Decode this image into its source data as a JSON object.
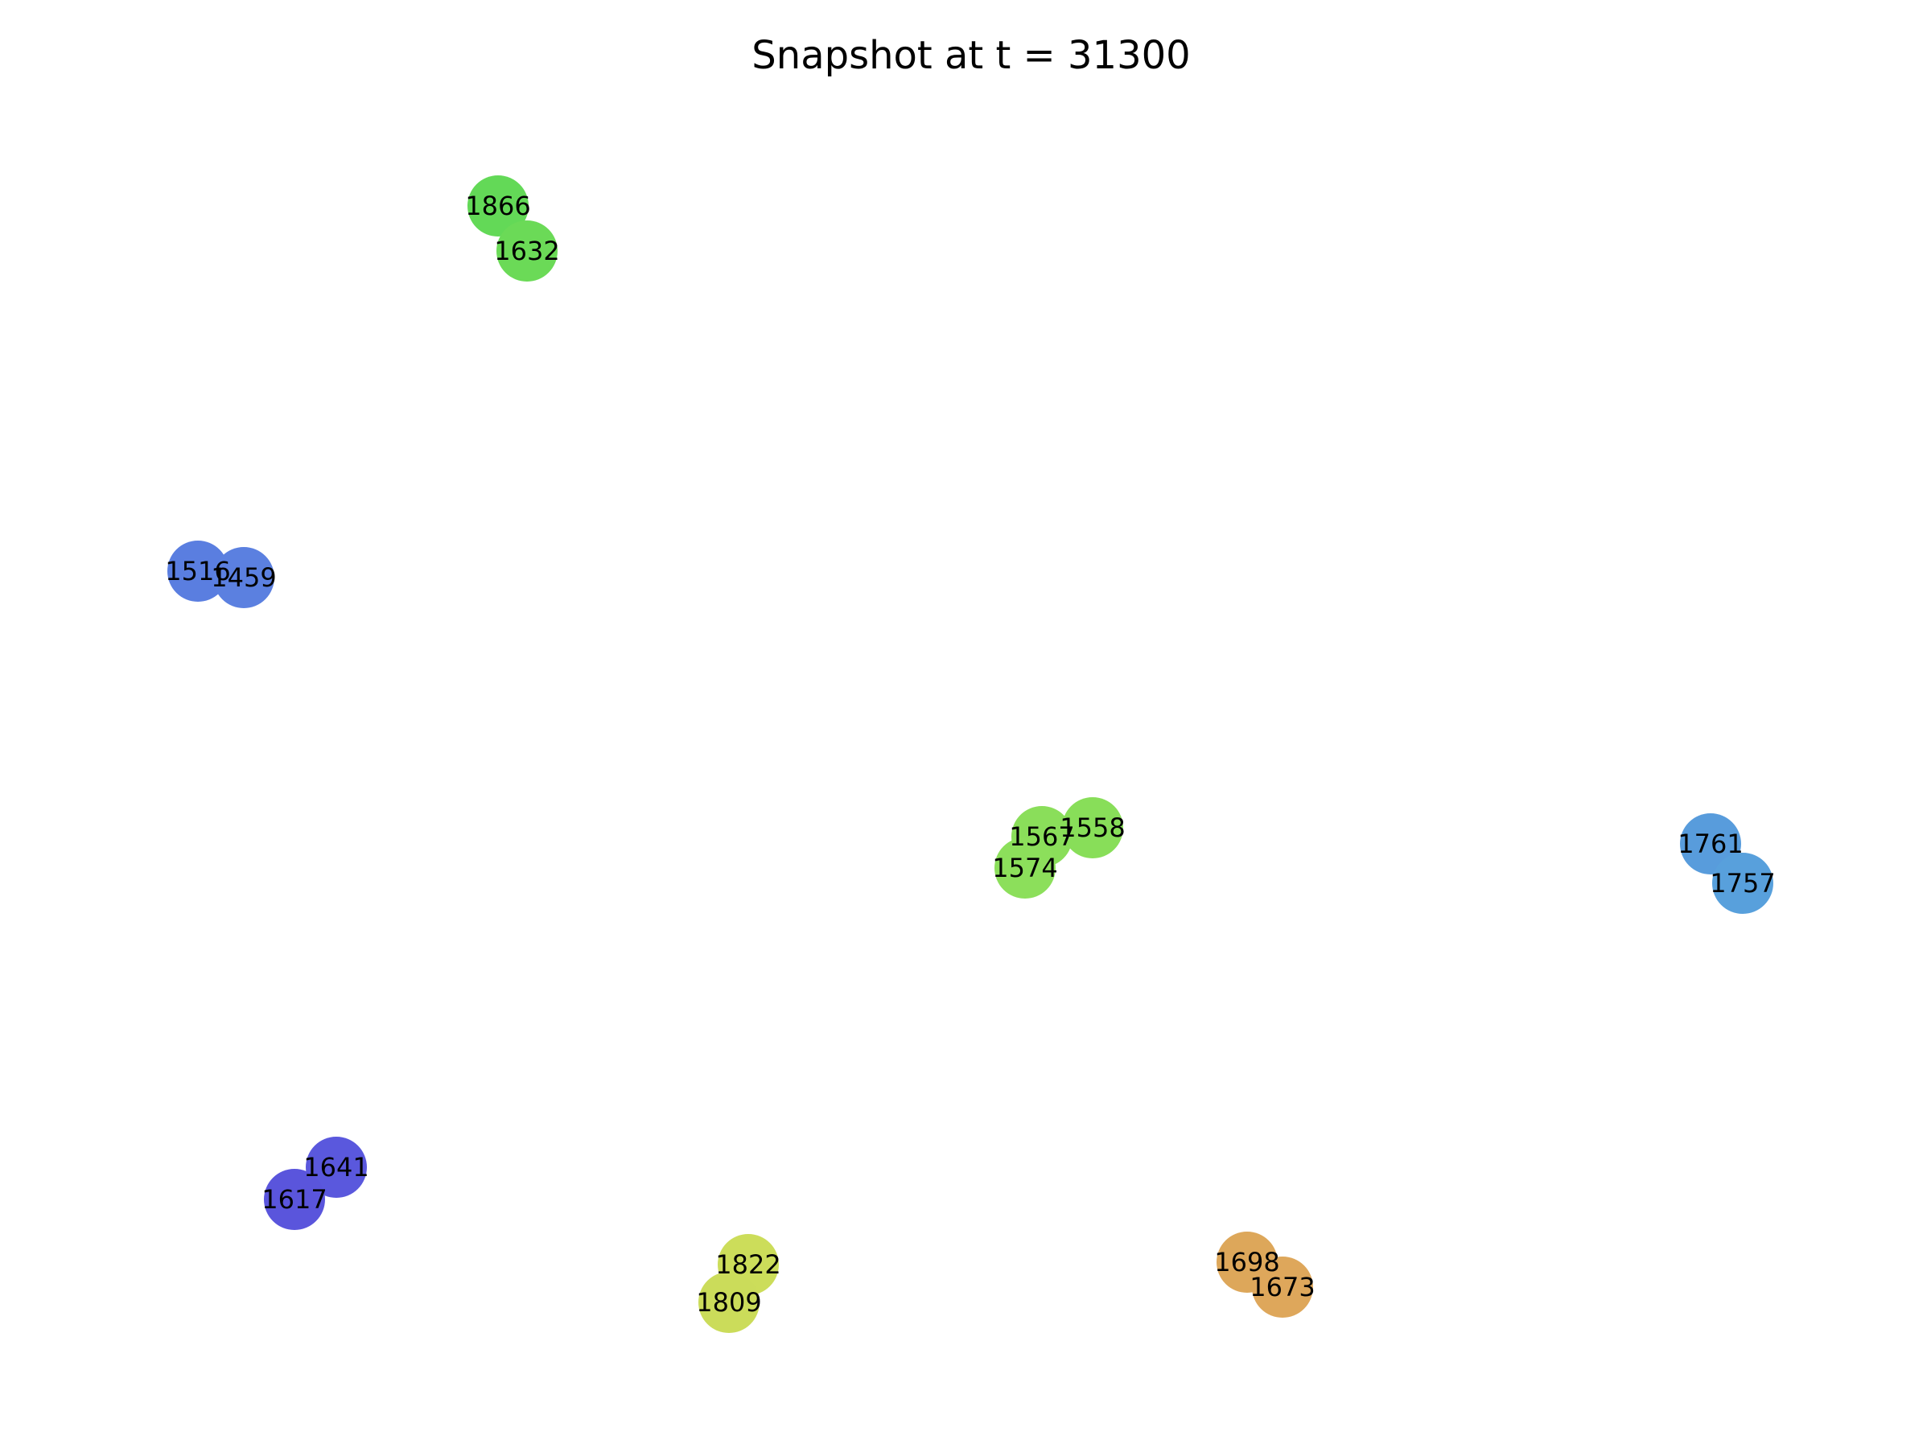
{
  "title": "Snapshot at t = 31300",
  "colors": {
    "background": "#ffffff",
    "label_text": "#000000"
  },
  "nodes": [
    {
      "id": "1866",
      "label": "1866",
      "color": "#63d957"
    },
    {
      "id": "1632",
      "label": "1632",
      "color": "#6bda57"
    },
    {
      "id": "1516",
      "label": "1516",
      "color": "#5a7ee0"
    },
    {
      "id": "1459",
      "label": "1459",
      "color": "#5b80e0"
    },
    {
      "id": "1567",
      "label": "1567",
      "color": "#8ade5a"
    },
    {
      "id": "1558",
      "label": "1558",
      "color": "#88de59"
    },
    {
      "id": "1574",
      "label": "1574",
      "color": "#8cdf5b"
    },
    {
      "id": "1761",
      "label": "1761",
      "color": "#589cdc"
    },
    {
      "id": "1757",
      "label": "1757",
      "color": "#58a0dc"
    },
    {
      "id": "1641",
      "label": "1641",
      "color": "#5a58dd"
    },
    {
      "id": "1617",
      "label": "1617",
      "color": "#5a55dc"
    },
    {
      "id": "1822",
      "label": "1822",
      "color": "#ccdd5a"
    },
    {
      "id": "1809",
      "label": "1809",
      "color": "#cbdc5a"
    },
    {
      "id": "1698",
      "label": "1698",
      "color": "#dda75a"
    },
    {
      "id": "1673",
      "label": "1673",
      "color": "#dea75b"
    }
  ]
}
